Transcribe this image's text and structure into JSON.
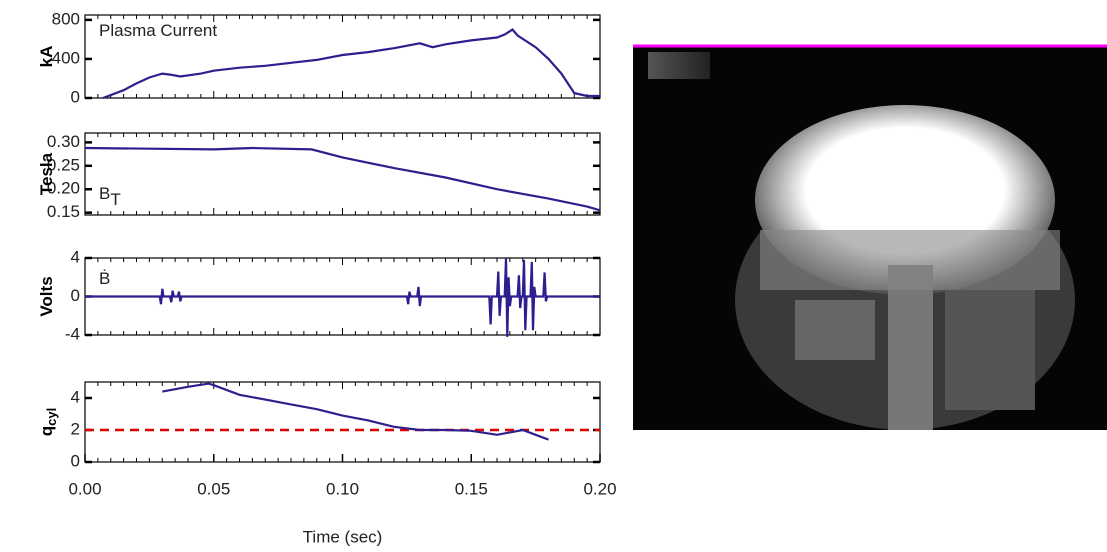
{
  "chart_data": [
    {
      "type": "line",
      "ylabel": "kA",
      "annotation": "Plasma Current",
      "color": "#2e1f8f",
      "xlim": [
        0,
        0.2
      ],
      "ylim": [
        0,
        850
      ],
      "yticks": [
        0,
        400,
        800
      ],
      "x": [
        0.007,
        0.015,
        0.02,
        0.025,
        0.03,
        0.033,
        0.037,
        0.045,
        0.05,
        0.06,
        0.07,
        0.08,
        0.09,
        0.1,
        0.11,
        0.12,
        0.13,
        0.135,
        0.14,
        0.15,
        0.16,
        0.163,
        0.166,
        0.168,
        0.175,
        0.18,
        0.185,
        0.19,
        0.195,
        0.2
      ],
      "values": [
        0,
        80,
        150,
        210,
        250,
        240,
        220,
        250,
        280,
        310,
        330,
        360,
        390,
        440,
        470,
        510,
        560,
        520,
        550,
        590,
        620,
        650,
        700,
        640,
        520,
        400,
        250,
        50,
        20,
        20
      ]
    },
    {
      "type": "line",
      "ylabel": "Tesla",
      "annotation": "B",
      "annotation_sub": "T",
      "color": "#2e1f8f",
      "xlim": [
        0,
        0.2
      ],
      "ylim": [
        0.145,
        0.32
      ],
      "yticks": [
        {
          "value": 0.15,
          "label": "0.15"
        },
        {
          "value": 0.2,
          "label": "0.20"
        },
        {
          "value": 0.25,
          "label": "0.25"
        },
        {
          "value": 0.3,
          "label": "0.30"
        }
      ],
      "x": [
        0,
        0.05,
        0.065,
        0.088,
        0.1,
        0.12,
        0.14,
        0.16,
        0.18,
        0.195,
        0.2
      ],
      "values": [
        0.288,
        0.285,
        0.288,
        0.285,
        0.268,
        0.245,
        0.225,
        0.2,
        0.18,
        0.163,
        0.155
      ]
    },
    {
      "type": "line",
      "ylabel": "Volts",
      "annotation": "Ḃ",
      "color": "#2e1f8f",
      "xlim": [
        0,
        0.2
      ],
      "ylim": [
        -4,
        4
      ],
      "yticks": [
        -4,
        0,
        4
      ],
      "x": [
        0,
        0.029,
        0.0295,
        0.03,
        0.0305,
        0.033,
        0.0335,
        0.034,
        0.0345,
        0.036,
        0.0365,
        0.037,
        0.0375,
        0.125,
        0.1255,
        0.126,
        0.1265,
        0.129,
        0.1295,
        0.13,
        0.1305,
        0.157,
        0.1575,
        0.158,
        0.16,
        0.1605,
        0.161,
        0.1615,
        0.163,
        0.1635,
        0.164,
        0.1645,
        0.165,
        0.1655,
        0.168,
        0.1685,
        0.169,
        0.1695,
        0.17,
        0.1705,
        0.171,
        0.1715,
        0.173,
        0.1735,
        0.174,
        0.1745,
        0.175,
        0.178,
        0.1785,
        0.179,
        0.1795,
        0.2
      ],
      "values": [
        0,
        0,
        -0.8,
        0.8,
        0,
        0,
        -0.6,
        0.6,
        0,
        0,
        0.5,
        -0.5,
        0,
        0,
        -0.8,
        0.5,
        0,
        0,
        1,
        -1,
        0,
        0,
        -2.9,
        0,
        0,
        2.6,
        -2,
        0,
        0,
        4,
        -4.2,
        2,
        -1,
        0,
        0,
        2.2,
        -1.2,
        0,
        0,
        3.8,
        -3.5,
        0,
        0,
        3.6,
        -3.5,
        1,
        0,
        0,
        2.5,
        -0.5,
        0,
        0
      ]
    },
    {
      "type": "line",
      "ylabel": "q",
      "ylabel_sub": "cyl",
      "color": "#2e1f8f",
      "xlim": [
        0,
        0.2
      ],
      "ylim": [
        0,
        5
      ],
      "yticks": [
        0,
        2,
        4
      ],
      "reference_line": {
        "value": 2,
        "color": "#e00000"
      },
      "xlabel": "Time (sec)",
      "xticks": [
        {
          "value": 0,
          "label": "0.00"
        },
        {
          "value": 0.05,
          "label": "0.05"
        },
        {
          "value": 0.1,
          "label": "0.10"
        },
        {
          "value": 0.15,
          "label": "0.15"
        },
        {
          "value": 0.2,
          "label": "0.20"
        }
      ],
      "x": [
        0.03,
        0.04,
        0.048,
        0.05,
        0.06,
        0.07,
        0.08,
        0.09,
        0.1,
        0.11,
        0.12,
        0.13,
        0.14,
        0.15,
        0.16,
        0.165,
        0.17,
        0.175,
        0.18
      ],
      "values": [
        4.4,
        4.7,
        4.9,
        4.8,
        4.2,
        3.9,
        3.6,
        3.3,
        2.9,
        2.6,
        2.2,
        2.0,
        2.0,
        1.95,
        1.7,
        1.85,
        2.0,
        1.7,
        1.4
      ]
    }
  ]
}
